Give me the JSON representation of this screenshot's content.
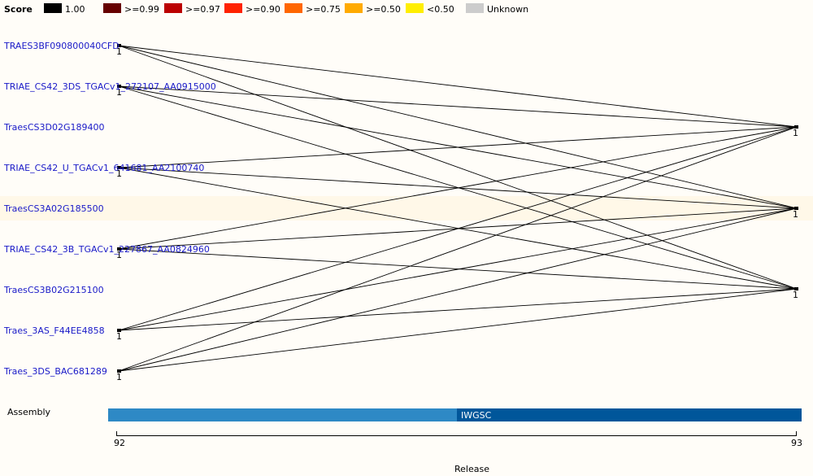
{
  "legend": {
    "title": "Score",
    "items": [
      {
        "label": "1.00",
        "color": "#000000"
      },
      {
        "label": ">=0.99",
        "color": "#660000"
      },
      {
        "label": ">=0.97",
        "color": "#bb0000"
      },
      {
        "label": ">=0.90",
        "color": "#ff2200"
      },
      {
        "label": ">=0.75",
        "color": "#ff6600"
      },
      {
        "label": ">=0.50",
        "color": "#ffaa00"
      },
      {
        "label": "<0.50",
        "color": "#ffee00"
      },
      {
        "label": "Unknown",
        "color": "#cccccc"
      }
    ]
  },
  "genes": [
    "TRAES3BF090800040CFD",
    "TRIAE_CS42_3DS_TGACv1_272107_AA0915000",
    "TraesCS3D02G189400",
    "TRIAE_CS42_U_TGACv1_641681_AA2100740",
    "TraesCS3A02G185500",
    "TRIAE_CS42_3B_TGACv1_227867_AA0824960",
    "TraesCS3B02G215100",
    "Traes_3AS_F44EE4858",
    "Traes_3DS_BAC681289"
  ],
  "node_label": "1",
  "assembly": {
    "label": "Assembly",
    "segment_b_label": "IWGSC"
  },
  "axis": {
    "title": "Release",
    "ticks": [
      "92",
      "93"
    ]
  }
}
